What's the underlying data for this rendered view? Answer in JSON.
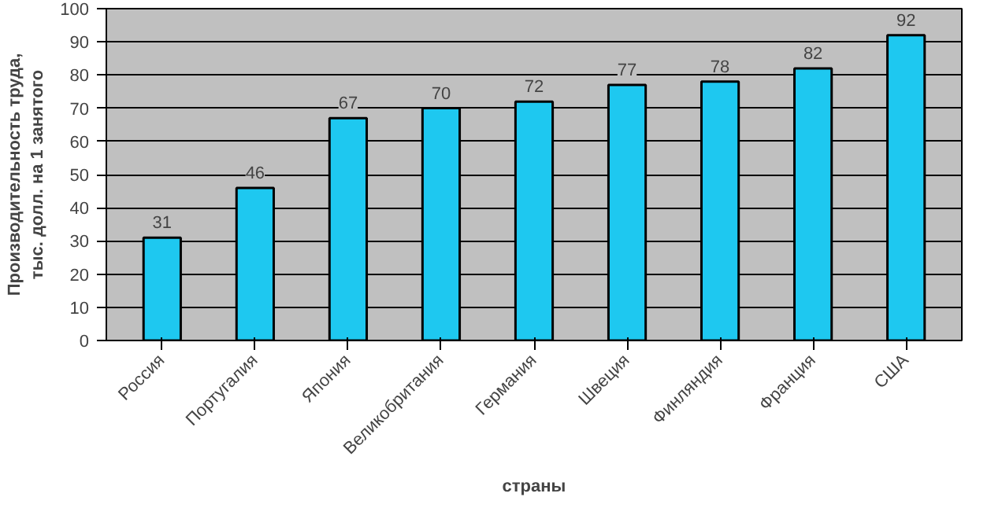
{
  "chart_data": {
    "type": "bar",
    "ylabel": "Производительность труда,\nтыс. долл. на 1 занятого",
    "xlabel": "страны",
    "categories": [
      "Россия",
      "Португалия",
      "Япония",
      "Великобритания",
      "Германия",
      "Швеция",
      "Финляндия",
      "Франция",
      "США"
    ],
    "values": [
      31,
      46,
      67,
      70,
      72,
      77,
      78,
      82,
      92
    ],
    "color": "#1ec8f0",
    "ylim": [
      0,
      100
    ],
    "yticks": [
      0,
      10,
      20,
      30,
      40,
      50,
      60,
      70,
      80,
      90,
      100
    ],
    "grid": "y",
    "data_labels": true
  }
}
